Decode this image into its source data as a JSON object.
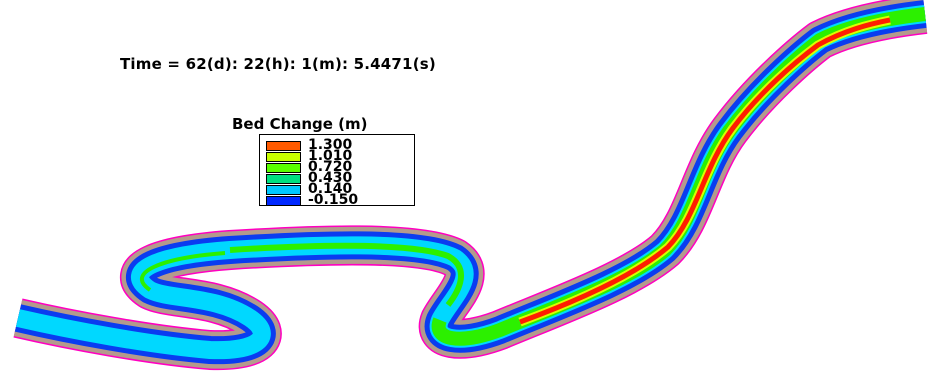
{
  "time_label": "Time = 62(d): 22(h): 1(m): 5.4471(s)",
  "legend": {
    "title": "Bed Change (m)",
    "entries": [
      {
        "value": "1.300",
        "color": "#ff5a00"
      },
      {
        "value": "1.010",
        "color": "#c8ff00"
      },
      {
        "value": "0.720",
        "color": "#5aff00"
      },
      {
        "value": "0.430",
        "color": "#00e080"
      },
      {
        "value": "0.140",
        "color": "#00c8ff"
      },
      {
        "value": "-0.150",
        "color": "#0028ff"
      }
    ]
  },
  "colors": {
    "bank_outline": "#ff00c0",
    "bank_fill": "#b49a8c",
    "channel_blue": "#0a3cf0",
    "channel_cyan": "#00d8ff",
    "channel_green": "#2cf000",
    "channel_yellow": "#d8ff00",
    "channel_red": "#ff1e00"
  }
}
